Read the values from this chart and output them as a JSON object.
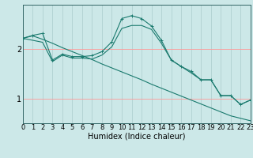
{
  "xlabel": "Humidex (Indice chaleur)",
  "bg_color": "#cce8e8",
  "line_color": "#1a7a6e",
  "x_ticks": [
    0,
    1,
    2,
    3,
    4,
    5,
    6,
    7,
    8,
    9,
    10,
    11,
    12,
    13,
    14,
    15,
    16,
    17,
    18,
    19,
    20,
    21,
    22,
    23
  ],
  "y_ticks": [
    1,
    2
  ],
  "xlim": [
    0,
    23
  ],
  "ylim": [
    0.5,
    2.9
  ],
  "series1_x": [
    0,
    1,
    2,
    3,
    4,
    5,
    6,
    7,
    8,
    9,
    10,
    11,
    12,
    13,
    14,
    15,
    16,
    17,
    18,
    19,
    20,
    21,
    22,
    23
  ],
  "series1_y": [
    2.22,
    2.27,
    2.2,
    2.12,
    2.03,
    1.95,
    1.87,
    1.79,
    1.7,
    1.62,
    1.54,
    1.46,
    1.38,
    1.29,
    1.21,
    1.13,
    1.05,
    0.97,
    0.89,
    0.81,
    0.73,
    0.65,
    0.6,
    0.55
  ],
  "series2_x": [
    0,
    1,
    2,
    3,
    4,
    5,
    6,
    7,
    8,
    9,
    10,
    11,
    12,
    13,
    14,
    15,
    16,
    17,
    18,
    19,
    20,
    21,
    22,
    23
  ],
  "series2_y": [
    2.22,
    2.28,
    2.32,
    1.78,
    1.9,
    1.85,
    1.85,
    1.87,
    1.95,
    2.15,
    2.62,
    2.68,
    2.62,
    2.47,
    2.18,
    1.78,
    1.65,
    1.55,
    1.38,
    1.38,
    1.06,
    1.06,
    0.88,
    0.97
  ],
  "series3_x": [
    0,
    1,
    2,
    3,
    4,
    5,
    6,
    7,
    8,
    9,
    10,
    11,
    12,
    13,
    14,
    15,
    16,
    17,
    18,
    19,
    20,
    21,
    22,
    23
  ],
  "series3_y": [
    2.22,
    2.18,
    2.14,
    1.75,
    1.88,
    1.82,
    1.82,
    1.8,
    1.88,
    2.05,
    2.42,
    2.48,
    2.48,
    2.4,
    2.12,
    1.78,
    1.65,
    1.52,
    1.38,
    1.38,
    1.06,
    1.06,
    0.88,
    0.97
  ],
  "tick_fontsize": 6,
  "xlabel_fontsize": 7
}
